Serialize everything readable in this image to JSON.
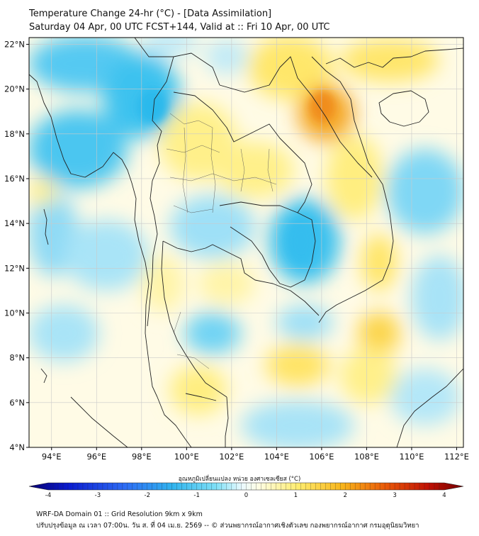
{
  "header": {
    "title": "Temperature Change 24-hr (°C) - [Data Assimilation]",
    "subtitle": "Saturday 04 Apr, 00 UTC FCST+144, Valid at :: Fri 10 Apr, 00 UTC"
  },
  "axes": {
    "lat_labels": [
      "22°N",
      "20°N",
      "18°N",
      "16°N",
      "14°N",
      "12°N",
      "10°N",
      "8°N",
      "6°N",
      "4°N"
    ],
    "lon_labels": [
      "94°E",
      "96°E",
      "98°E",
      "100°E",
      "102°E",
      "104°E",
      "106°E",
      "108°E",
      "110°E",
      "112°E"
    ],
    "lat_values": [
      22,
      20,
      18,
      16,
      14,
      12,
      10,
      8,
      6,
      4
    ],
    "lon_values": [
      94,
      96,
      98,
      100,
      102,
      104,
      106,
      108,
      110,
      112
    ],
    "lat_range": [
      4,
      22.3
    ],
    "lon_range": [
      93,
      112.3
    ]
  },
  "colorbar": {
    "title": "อุณหภูมิเปลี่ยนแปลง หน่วย องศาเซลเซียส (°C)",
    "ticks": [
      "-4",
      "-3",
      "-2",
      "-1",
      "0",
      "1",
      "2",
      "3",
      "4"
    ],
    "tick_values": [
      -4,
      -3,
      -2,
      -1,
      0,
      1,
      2,
      3,
      4
    ],
    "range": [
      -4,
      4
    ],
    "colors": [
      "#08006e",
      "#0a1bd0",
      "#2d6cf5",
      "#30b4ee",
      "#7ee0f7",
      "#eafaff",
      "#fffde2",
      "#ffec6e",
      "#f8b61c",
      "#ea5a08",
      "#c01004",
      "#720000"
    ]
  },
  "footer": {
    "line1": "WRF-DA Domain 01 :: Grid Resolution 9km x 9km",
    "line2": "ปรับปรุงข้อมูล ณ เวลา 07:00น. วัน ส. ที่ 04 เม.ย. 2569 -- © ส่วนพยากรณ์อากาศเชิงตัวเลข กองพยากรณ์อากาศ กรมอุตุนิยมวิทยา"
  },
  "field": {
    "background_color": "#fffbe6",
    "cool_color": "#35c3f0",
    "warm_color": "#ffe14d",
    "hot_color": "#f29a1e",
    "border_color": "#222222"
  }
}
